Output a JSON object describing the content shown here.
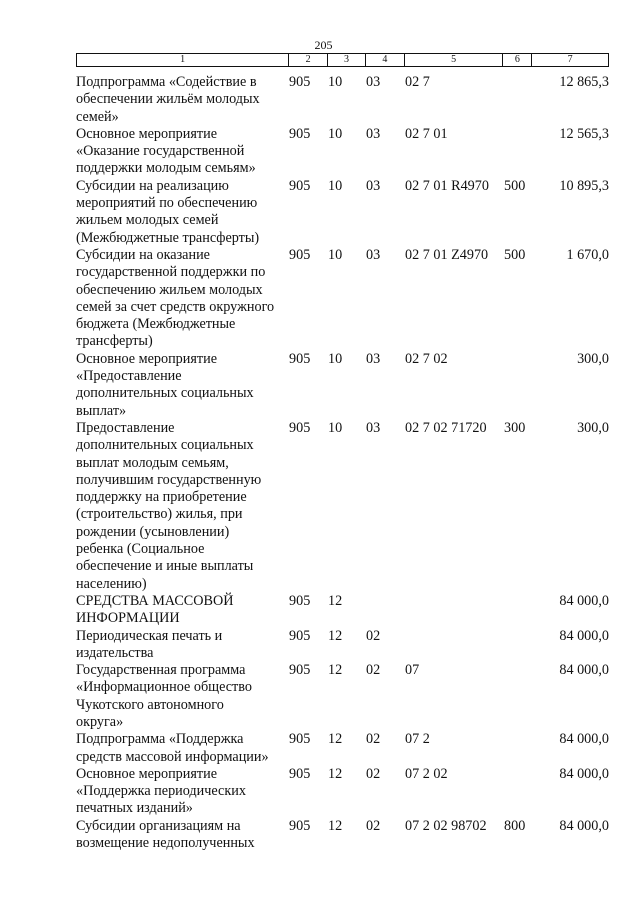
{
  "page_number": "205",
  "header": [
    "1",
    "2",
    "3",
    "4",
    "5",
    "6",
    "7"
  ],
  "rows": [
    {
      "name": [
        "Подпрограмма «Содействие в",
        "обеспечении жильём молодых",
        "семей»"
      ],
      "c2": "905",
      "c3": "10",
      "c4": "03",
      "c5": "02 7",
      "c6": "",
      "c7": "12 865,3"
    },
    {
      "name": [
        "Основное мероприятие",
        "«Оказание государственной",
        "поддержки молодым семьям»"
      ],
      "c2": "905",
      "c3": "10",
      "c4": "03",
      "c5": "02 7 01",
      "c6": "",
      "c7": "12 565,3"
    },
    {
      "name": [
        "Субсидии на реализацию",
        "мероприятий по обеспечению",
        "жильем молодых семей",
        "(Межбюджетные трансферты)"
      ],
      "c2": "905",
      "c3": "10",
      "c4": "03",
      "c5": "02 7 01 R4970",
      "c6": "500",
      "c7": "10 895,3"
    },
    {
      "name": [
        "Субсидии на оказание",
        "государственной поддержки по",
        "обеспечению жильем молодых",
        "семей за счет средств окружного",
        "бюджета (Межбюджетные",
        "трансферты)"
      ],
      "c2": "905",
      "c3": "10",
      "c4": "03",
      "c5": "02 7 01 Z4970",
      "c6": "500",
      "c7": "1 670,0"
    },
    {
      "name": [
        "Основное мероприятие",
        "«Предоставление",
        "дополнительных социальных",
        "выплат»"
      ],
      "c2": "905",
      "c3": "10",
      "c4": "03",
      "c5": "02 7 02",
      "c6": "",
      "c7": "300,0"
    },
    {
      "name": [
        "Предоставление",
        "дополнительных социальных",
        "выплат молодым семьям,",
        "получившим государственную",
        "поддержку на приобретение",
        "(строительство) жилья, при",
        "рождении (усыновлении)",
        "ребенка (Социальное",
        "обеспечение и иные выплаты",
        "населению)"
      ],
      "c2": "905",
      "c3": "10",
      "c4": "03",
      "c5": "02 7 02 71720",
      "c6": "300",
      "c7": "300,0"
    },
    {
      "name": [
        "СРЕДСТВА МАССОВОЙ",
        "ИНФОРМАЦИИ"
      ],
      "c2": "905",
      "c3": "12",
      "c4": "",
      "c5": "",
      "c6": "",
      "c7": "84 000,0"
    },
    {
      "name": [
        "Периодическая печать и",
        "издательства"
      ],
      "c2": "905",
      "c3": "12",
      "c4": "02",
      "c5": "",
      "c6": "",
      "c7": "84 000,0"
    },
    {
      "name": [
        "Государственная программа",
        "«Информационное общество",
        "Чукотского автономного",
        "округа»"
      ],
      "c2": "905",
      "c3": "12",
      "c4": "02",
      "c5": "07",
      "c6": "",
      "c7": "84 000,0"
    },
    {
      "name": [
        "Подпрограмма «Поддержка",
        "средств массовой информации»"
      ],
      "c2": "905",
      "c3": "12",
      "c4": "02",
      "c5": "07 2",
      "c6": "",
      "c7": "84 000,0"
    },
    {
      "name": [
        "Основное мероприятие",
        "«Поддержка периодических",
        "печатных изданий»"
      ],
      "c2": "905",
      "c3": "12",
      "c4": "02",
      "c5": "07 2 02",
      "c6": "",
      "c7": "84 000,0"
    },
    {
      "name": [
        "Субсидии организациям на",
        "возмещение недополученных"
      ],
      "c2": "905",
      "c3": "12",
      "c4": "02",
      "c5": "07 2 02 98702",
      "c6": "800",
      "c7": "84 000,0"
    }
  ]
}
